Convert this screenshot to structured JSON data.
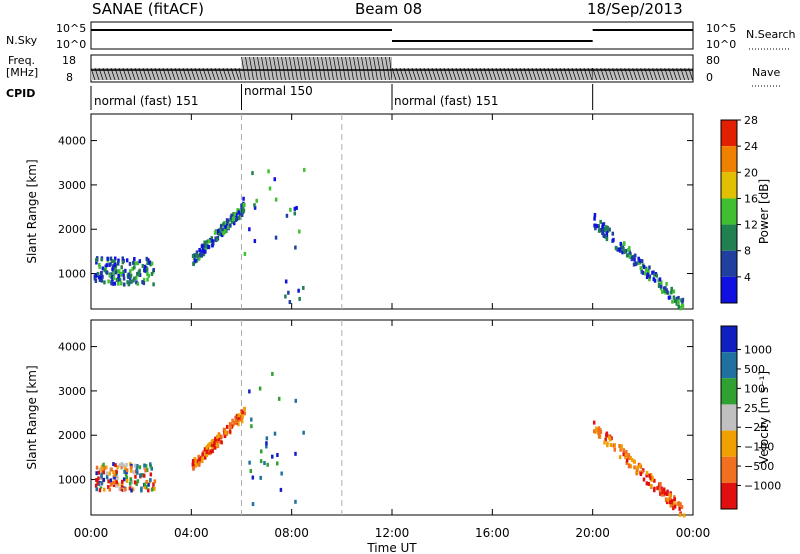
{
  "header": {
    "title": "SANAE (fitACF)",
    "beam": "Beam 08",
    "date": "18/Sep/2013"
  },
  "strips": {
    "nsky": {
      "label": "N.Sky",
      "ticks": [
        "10^5",
        "10^0"
      ]
    },
    "nsearch": {
      "label": "N.Search",
      "ticks": [
        "10^5",
        "10^0"
      ]
    },
    "freq": {
      "label_line1": "Freq.",
      "label_line2": "[MHz]",
      "ticks": [
        "18",
        "8"
      ]
    },
    "nave": {
      "label": "Nave",
      "ticks": [
        "80",
        "0"
      ]
    },
    "cpid": {
      "label": "CPID"
    }
  },
  "modes": [
    {
      "label": "normal (fast) 151",
      "start_hr": 0,
      "end_hr": 6
    },
    {
      "label": "normal 150",
      "start_hr": 6,
      "end_hr": 12
    },
    {
      "label": "normal (fast) 151",
      "start_hr": 12,
      "end_hr": 20
    }
  ],
  "colors": {
    "power": [
      "#1010e0",
      "#2040a0",
      "#208050",
      "#40c030",
      "#e0c000",
      "#f08000",
      "#e02000"
    ],
    "velocity": [
      "#e01010",
      "#f07020",
      "#f0a000",
      "#c0c0c0",
      "#30a030",
      "#2070a0",
      "#1020c0"
    ]
  },
  "chart_data": [
    {
      "type": "heatmap",
      "title": "",
      "xlabel": "Time UT",
      "ylabel": "Slant Range [km]",
      "xlim": [
        0,
        24
      ],
      "ylim": [
        200,
        4600
      ],
      "x_tick_labels": [
        "00:00",
        "04:00",
        "08:00",
        "12:00",
        "16:00",
        "20:00",
        "00:00"
      ],
      "y_tick_labels": [
        "1000",
        "2000",
        "3000",
        "4000"
      ],
      "colorbar": {
        "label": "Power [dB]",
        "ticks": [
          "4",
          "8",
          "12",
          "16",
          "20",
          "24",
          "28"
        ]
      },
      "dashed_lines_hr": [
        6,
        10
      ],
      "clusters": [
        {
          "t0": 0.1,
          "t1": 2.5,
          "r0": 750,
          "r1": 1350,
          "level": "low"
        },
        {
          "t0": 4.0,
          "t1": 6.1,
          "r0": 1300,
          "r1": 2500,
          "level": "low"
        },
        {
          "t0": 6.0,
          "t1": 8.5,
          "r0": 300,
          "r1": 3400,
          "level": "low-sparse"
        },
        {
          "t0": 20.0,
          "t1": 23.6,
          "r0": 250,
          "r1": 2200,
          "level": "low"
        }
      ]
    },
    {
      "type": "heatmap",
      "title": "",
      "xlabel": "Time UT",
      "ylabel": "Slant Range [km]",
      "xlim": [
        0,
        24
      ],
      "ylim": [
        200,
        4600
      ],
      "x_tick_labels": [
        "00:00",
        "04:00",
        "08:00",
        "12:00",
        "16:00",
        "20:00",
        "00:00"
      ],
      "y_tick_labels": [
        "1000",
        "2000",
        "3000",
        "4000"
      ],
      "colorbar": {
        "label": "Velocity [m s⁻¹]",
        "ticks": [
          "1000",
          "500",
          "100",
          "25",
          "−25",
          "−100",
          "−500",
          "−1000"
        ]
      },
      "dashed_lines_hr": [
        6,
        10
      ],
      "clusters": [
        {
          "t0": 0.1,
          "t1": 2.5,
          "r0": 750,
          "r1": 1350,
          "level": "mixed"
        },
        {
          "t0": 4.0,
          "t1": 6.1,
          "r0": 1300,
          "r1": 2500,
          "level": "negative"
        },
        {
          "t0": 6.0,
          "t1": 8.5,
          "r0": 300,
          "r1": 3400,
          "level": "positive-sparse"
        },
        {
          "t0": 20.0,
          "t1": 23.6,
          "r0": 250,
          "r1": 2200,
          "level": "negative"
        }
      ]
    }
  ],
  "axis": {
    "xlabel": "Time UT"
  }
}
